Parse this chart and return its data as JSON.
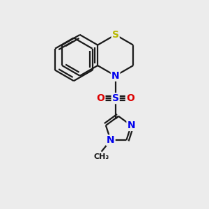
{
  "background_color": "#ececec",
  "bond_color": "#1a1a1a",
  "S_color": "#b8b800",
  "N_color": "#0000ee",
  "O_color": "#dd0000",
  "SO2_S_color": "#0000ee",
  "line_width": 1.6,
  "font_size": 10,
  "fig_size": [
    3.0,
    3.0
  ],
  "dpi": 100,
  "xlim": [
    0,
    10
  ],
  "ylim": [
    0,
    10
  ]
}
